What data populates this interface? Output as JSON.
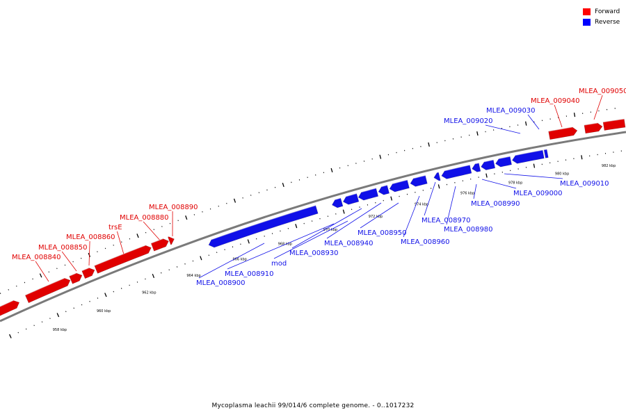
{
  "legend": {
    "items": [
      {
        "label": "Forward",
        "color": "#ff0000"
      },
      {
        "label": "Reverse",
        "color": "#0000ff"
      }
    ]
  },
  "caption": "Mycoplasma leachii 99/014/6 complete genome. - 0..1017232",
  "colors": {
    "forward": "#e00000",
    "reverse": "#1010e8",
    "backbone": "#7a7a7a"
  },
  "scale": {
    "labels": [
      "958 kbp",
      "960 kbp",
      "962 kbp",
      "964 kbp",
      "966 kbp",
      "968 kbp",
      "970 kbp",
      "972 kbp",
      "974 kbp",
      "976 kbp",
      "978 kbp",
      "980 kbp",
      "982 kbp"
    ]
  },
  "genes": [
    {
      "name": "MLEA_008840",
      "strand": "forward"
    },
    {
      "name": "MLEA_008850",
      "strand": "forward"
    },
    {
      "name": "MLEA_008860",
      "strand": "forward"
    },
    {
      "name": "trsE",
      "strand": "forward"
    },
    {
      "name": "MLEA_008880",
      "strand": "forward"
    },
    {
      "name": "MLEA_008890",
      "strand": "forward"
    },
    {
      "name": "MLEA_008900",
      "strand": "reverse"
    },
    {
      "name": "MLEA_008910",
      "strand": "reverse"
    },
    {
      "name": "mod",
      "strand": "reverse"
    },
    {
      "name": "MLEA_008930",
      "strand": "reverse"
    },
    {
      "name": "MLEA_008940",
      "strand": "reverse"
    },
    {
      "name": "MLEA_008950",
      "strand": "reverse"
    },
    {
      "name": "MLEA_008960",
      "strand": "reverse"
    },
    {
      "name": "MLEA_008970",
      "strand": "reverse"
    },
    {
      "name": "MLEA_008980",
      "strand": "reverse"
    },
    {
      "name": "MLEA_008990",
      "strand": "reverse"
    },
    {
      "name": "MLEA_009000",
      "strand": "reverse"
    },
    {
      "name": "MLEA_009010",
      "strand": "reverse"
    },
    {
      "name": "MLEA_009020",
      "strand": "reverse"
    },
    {
      "name": "MLEA_009030",
      "strand": "reverse"
    },
    {
      "name": "MLEA_009040",
      "strand": "forward"
    },
    {
      "name": "MLEA_009050",
      "strand": "forward"
    }
  ]
}
